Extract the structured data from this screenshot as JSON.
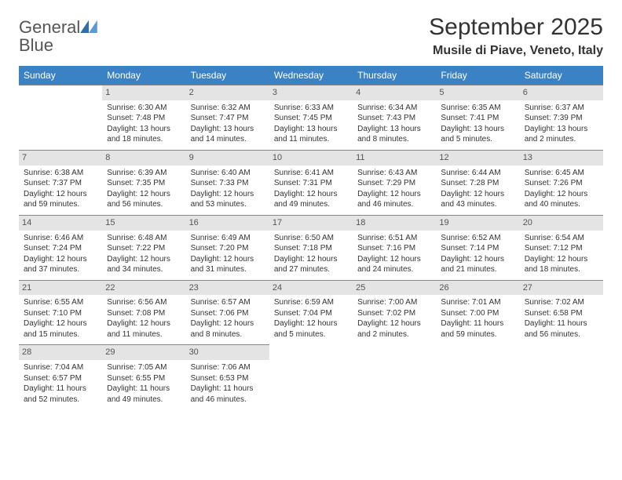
{
  "logo": {
    "text_general": "General",
    "text_blue": "Blue"
  },
  "title": "September 2025",
  "location": "Musile di Piave, Veneto, Italy",
  "colors": {
    "header_bg": "#3b82c4",
    "header_text": "#ffffff",
    "daynum_bg": "#e4e4e4",
    "daynum_text": "#555555",
    "row_border": "#888888",
    "body_text": "#333333",
    "page_bg": "#ffffff"
  },
  "day_headers": [
    "Sunday",
    "Monday",
    "Tuesday",
    "Wednesday",
    "Thursday",
    "Friday",
    "Saturday"
  ],
  "weeks": [
    [
      {
        "empty": true
      },
      {
        "n": "1",
        "sunrise": "Sunrise: 6:30 AM",
        "sunset": "Sunset: 7:48 PM",
        "d1": "Daylight: 13 hours",
        "d2": "and 18 minutes."
      },
      {
        "n": "2",
        "sunrise": "Sunrise: 6:32 AM",
        "sunset": "Sunset: 7:47 PM",
        "d1": "Daylight: 13 hours",
        "d2": "and 14 minutes."
      },
      {
        "n": "3",
        "sunrise": "Sunrise: 6:33 AM",
        "sunset": "Sunset: 7:45 PM",
        "d1": "Daylight: 13 hours",
        "d2": "and 11 minutes."
      },
      {
        "n": "4",
        "sunrise": "Sunrise: 6:34 AM",
        "sunset": "Sunset: 7:43 PM",
        "d1": "Daylight: 13 hours",
        "d2": "and 8 minutes."
      },
      {
        "n": "5",
        "sunrise": "Sunrise: 6:35 AM",
        "sunset": "Sunset: 7:41 PM",
        "d1": "Daylight: 13 hours",
        "d2": "and 5 minutes."
      },
      {
        "n": "6",
        "sunrise": "Sunrise: 6:37 AM",
        "sunset": "Sunset: 7:39 PM",
        "d1": "Daylight: 13 hours",
        "d2": "and 2 minutes."
      }
    ],
    [
      {
        "n": "7",
        "sunrise": "Sunrise: 6:38 AM",
        "sunset": "Sunset: 7:37 PM",
        "d1": "Daylight: 12 hours",
        "d2": "and 59 minutes."
      },
      {
        "n": "8",
        "sunrise": "Sunrise: 6:39 AM",
        "sunset": "Sunset: 7:35 PM",
        "d1": "Daylight: 12 hours",
        "d2": "and 56 minutes."
      },
      {
        "n": "9",
        "sunrise": "Sunrise: 6:40 AM",
        "sunset": "Sunset: 7:33 PM",
        "d1": "Daylight: 12 hours",
        "d2": "and 53 minutes."
      },
      {
        "n": "10",
        "sunrise": "Sunrise: 6:41 AM",
        "sunset": "Sunset: 7:31 PM",
        "d1": "Daylight: 12 hours",
        "d2": "and 49 minutes."
      },
      {
        "n": "11",
        "sunrise": "Sunrise: 6:43 AM",
        "sunset": "Sunset: 7:29 PM",
        "d1": "Daylight: 12 hours",
        "d2": "and 46 minutes."
      },
      {
        "n": "12",
        "sunrise": "Sunrise: 6:44 AM",
        "sunset": "Sunset: 7:28 PM",
        "d1": "Daylight: 12 hours",
        "d2": "and 43 minutes."
      },
      {
        "n": "13",
        "sunrise": "Sunrise: 6:45 AM",
        "sunset": "Sunset: 7:26 PM",
        "d1": "Daylight: 12 hours",
        "d2": "and 40 minutes."
      }
    ],
    [
      {
        "n": "14",
        "sunrise": "Sunrise: 6:46 AM",
        "sunset": "Sunset: 7:24 PM",
        "d1": "Daylight: 12 hours",
        "d2": "and 37 minutes."
      },
      {
        "n": "15",
        "sunrise": "Sunrise: 6:48 AM",
        "sunset": "Sunset: 7:22 PM",
        "d1": "Daylight: 12 hours",
        "d2": "and 34 minutes."
      },
      {
        "n": "16",
        "sunrise": "Sunrise: 6:49 AM",
        "sunset": "Sunset: 7:20 PM",
        "d1": "Daylight: 12 hours",
        "d2": "and 31 minutes."
      },
      {
        "n": "17",
        "sunrise": "Sunrise: 6:50 AM",
        "sunset": "Sunset: 7:18 PM",
        "d1": "Daylight: 12 hours",
        "d2": "and 27 minutes."
      },
      {
        "n": "18",
        "sunrise": "Sunrise: 6:51 AM",
        "sunset": "Sunset: 7:16 PM",
        "d1": "Daylight: 12 hours",
        "d2": "and 24 minutes."
      },
      {
        "n": "19",
        "sunrise": "Sunrise: 6:52 AM",
        "sunset": "Sunset: 7:14 PM",
        "d1": "Daylight: 12 hours",
        "d2": "and 21 minutes."
      },
      {
        "n": "20",
        "sunrise": "Sunrise: 6:54 AM",
        "sunset": "Sunset: 7:12 PM",
        "d1": "Daylight: 12 hours",
        "d2": "and 18 minutes."
      }
    ],
    [
      {
        "n": "21",
        "sunrise": "Sunrise: 6:55 AM",
        "sunset": "Sunset: 7:10 PM",
        "d1": "Daylight: 12 hours",
        "d2": "and 15 minutes."
      },
      {
        "n": "22",
        "sunrise": "Sunrise: 6:56 AM",
        "sunset": "Sunset: 7:08 PM",
        "d1": "Daylight: 12 hours",
        "d2": "and 11 minutes."
      },
      {
        "n": "23",
        "sunrise": "Sunrise: 6:57 AM",
        "sunset": "Sunset: 7:06 PM",
        "d1": "Daylight: 12 hours",
        "d2": "and 8 minutes."
      },
      {
        "n": "24",
        "sunrise": "Sunrise: 6:59 AM",
        "sunset": "Sunset: 7:04 PM",
        "d1": "Daylight: 12 hours",
        "d2": "and 5 minutes."
      },
      {
        "n": "25",
        "sunrise": "Sunrise: 7:00 AM",
        "sunset": "Sunset: 7:02 PM",
        "d1": "Daylight: 12 hours",
        "d2": "and 2 minutes."
      },
      {
        "n": "26",
        "sunrise": "Sunrise: 7:01 AM",
        "sunset": "Sunset: 7:00 PM",
        "d1": "Daylight: 11 hours",
        "d2": "and 59 minutes."
      },
      {
        "n": "27",
        "sunrise": "Sunrise: 7:02 AM",
        "sunset": "Sunset: 6:58 PM",
        "d1": "Daylight: 11 hours",
        "d2": "and 56 minutes."
      }
    ],
    [
      {
        "n": "28",
        "sunrise": "Sunrise: 7:04 AM",
        "sunset": "Sunset: 6:57 PM",
        "d1": "Daylight: 11 hours",
        "d2": "and 52 minutes."
      },
      {
        "n": "29",
        "sunrise": "Sunrise: 7:05 AM",
        "sunset": "Sunset: 6:55 PM",
        "d1": "Daylight: 11 hours",
        "d2": "and 49 minutes."
      },
      {
        "n": "30",
        "sunrise": "Sunrise: 7:06 AM",
        "sunset": "Sunset: 6:53 PM",
        "d1": "Daylight: 11 hours",
        "d2": "and 46 minutes."
      },
      {
        "empty": true
      },
      {
        "empty": true
      },
      {
        "empty": true
      },
      {
        "empty": true
      }
    ]
  ]
}
